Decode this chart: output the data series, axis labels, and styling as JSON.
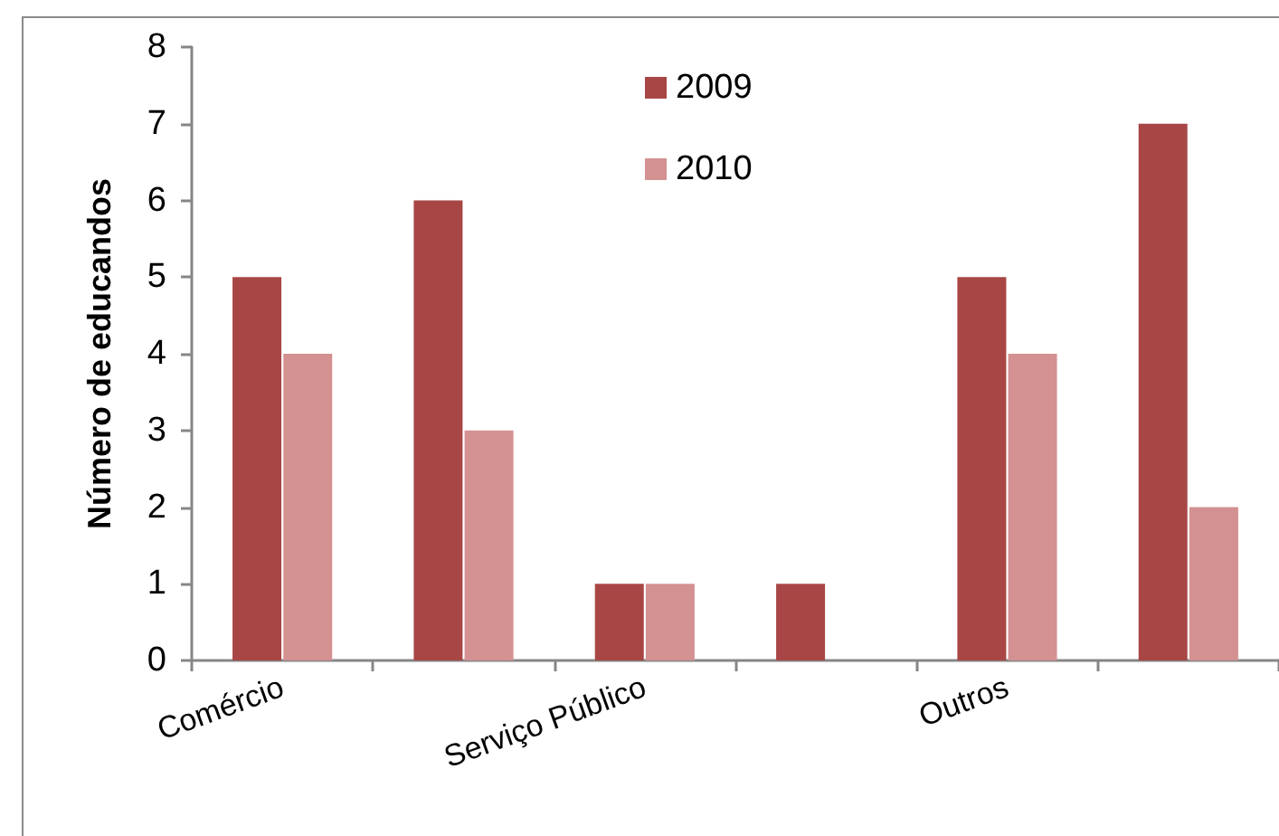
{
  "chart_data": {
    "type": "bar",
    "ylabel": "Número de educandos",
    "categories": [
      "Comércio",
      null,
      "Serviço Público",
      null,
      "Outros",
      null
    ],
    "series": [
      {
        "name": "2009",
        "color": "#a84646",
        "values": [
          5,
          6,
          1,
          1,
          5,
          7
        ]
      },
      {
        "name": "2010",
        "color": "#d39192",
        "values": [
          4,
          3,
          1,
          null,
          4,
          2
        ]
      }
    ],
    "ylim": [
      0,
      8
    ],
    "yticks": [
      0,
      1,
      2,
      3,
      4,
      5,
      6,
      7,
      8
    ],
    "grid": false,
    "legend": "top"
  }
}
